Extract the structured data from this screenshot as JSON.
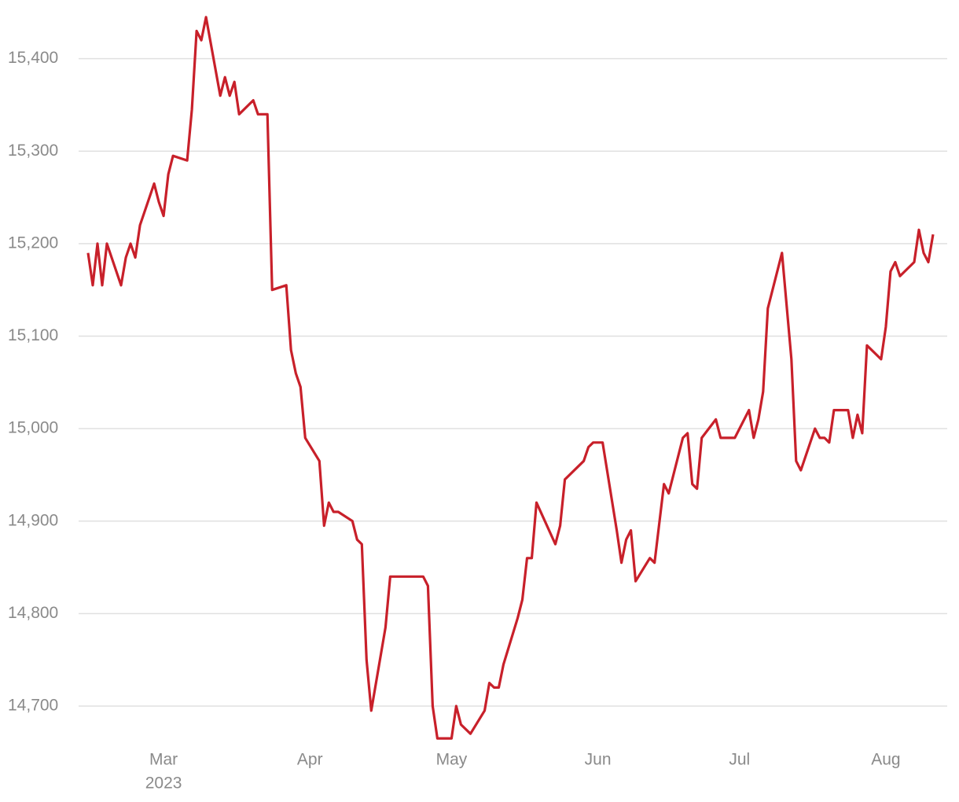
{
  "chart_data": {
    "type": "line",
    "x": [
      -16,
      -15,
      -14,
      -13,
      -12,
      -9,
      -8,
      -7,
      -6,
      -5,
      -2,
      -1,
      0,
      1,
      2,
      5,
      6,
      7,
      8,
      9,
      12,
      13,
      14,
      15,
      16,
      19,
      20,
      22,
      23,
      26,
      27,
      28,
      29,
      30,
      33,
      34,
      35,
      36,
      37,
      40,
      41,
      42,
      43,
      44,
      47,
      48,
      55,
      56,
      57,
      58,
      61,
      62,
      63,
      65,
      68,
      69,
      70,
      71,
      72,
      75,
      76,
      77,
      78,
      79,
      83,
      84,
      85,
      89,
      90,
      91,
      93,
      96,
      97,
      98,
      99,
      100,
      103,
      104,
      106,
      107,
      110,
      111,
      112,
      113,
      114,
      117,
      118,
      121,
      124,
      125,
      126,
      127,
      128,
      131,
      133,
      134,
      135,
      138,
      139,
      140,
      141,
      142,
      145,
      146,
      147,
      148,
      149,
      152,
      153,
      154,
      155,
      156,
      159,
      160,
      161,
      162,
      163
    ],
    "series": [
      {
        "color": "#c8202a",
        "values": [
          15190,
          15155,
          15200,
          15155,
          15200,
          15155,
          15185,
          15200,
          15185,
          15220,
          15265,
          15245,
          15230,
          15275,
          15295,
          15290,
          15345,
          15430,
          15420,
          15445,
          15360,
          15380,
          15360,
          15375,
          15340,
          15355,
          15340,
          15340,
          15150,
          15155,
          15085,
          15060,
          15045,
          14990,
          14965,
          14895,
          14920,
          14910,
          14910,
          14900,
          14880,
          14875,
          14750,
          14695,
          14785,
          14840,
          14840,
          14830,
          14700,
          14665,
          14665,
          14700,
          14680,
          14670,
          14695,
          14725,
          14720,
          14720,
          14745,
          14795,
          14815,
          14860,
          14860,
          14920,
          14875,
          14895,
          14945,
          14965,
          14980,
          14985,
          14985,
          14890,
          14855,
          14880,
          14890,
          14835,
          14860,
          14855,
          14940,
          14930,
          14990,
          14995,
          14940,
          14935,
          14990,
          15010,
          14990,
          14990,
          15020,
          14990,
          15010,
          15040,
          15130,
          15190,
          15075,
          14965,
          14955,
          15000,
          14990,
          14990,
          14985,
          15020,
          15020,
          14990,
          15015,
          14995,
          15090,
          15075,
          15110,
          15170,
          15180,
          15165,
          15180,
          15215,
          15190,
          15180,
          15210
        ]
      }
    ],
    "xlim": [
      -18,
      166
    ],
    "xticks": [
      {
        "value": 0,
        "label": "Mar"
      },
      {
        "value": 31,
        "label": "Apr"
      },
      {
        "value": 61,
        "label": "May"
      },
      {
        "value": 92,
        "label": "Jun"
      },
      {
        "value": 122,
        "label": "Jul"
      },
      {
        "value": 153,
        "label": "Aug"
      }
    ],
    "x_sublabel": "2023",
    "ylim": [
      14660,
      15455
    ],
    "yticks": [
      {
        "value": 14700,
        "label": "14,700"
      },
      {
        "value": 14800,
        "label": "14,800"
      },
      {
        "value": 14900,
        "label": "14,900"
      },
      {
        "value": 15000,
        "label": "15,000"
      },
      {
        "value": 15100,
        "label": "15,100"
      },
      {
        "value": 15200,
        "label": "15,200"
      },
      {
        "value": 15300,
        "label": "15,300"
      },
      {
        "value": 15400,
        "label": "15,400"
      }
    ],
    "grid": true
  }
}
